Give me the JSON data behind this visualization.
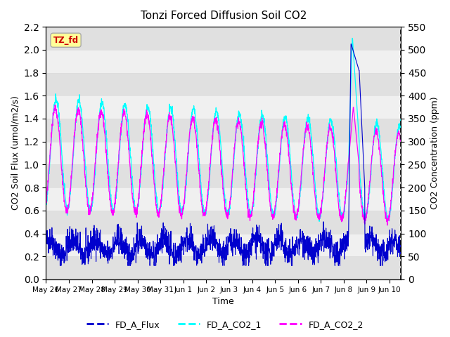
{
  "title": "Tonzi Forced Diffusion Soil CO2",
  "xlabel": "Time",
  "ylabel_left": "CO2 Soil Flux (umol/m2/s)",
  "ylabel_right": "CO2 Concentration (ppm)",
  "ylim_left": [
    0.0,
    2.2
  ],
  "ylim_right": [
    0,
    550
  ],
  "yticks_left": [
    0.0,
    0.2,
    0.4,
    0.6,
    0.8,
    1.0,
    1.2,
    1.4,
    1.6,
    1.8,
    2.0,
    2.2
  ],
  "yticks_right": [
    0,
    50,
    100,
    150,
    200,
    250,
    300,
    350,
    400,
    450,
    500,
    550
  ],
  "color_flux": "#0000CD",
  "color_co2_1": "#00FFFF",
  "color_co2_2": "#FF00FF",
  "tag_text": "TZ_fd",
  "tag_bg": "#FFFF99",
  "tag_fg": "#CC0000",
  "legend_labels": [
    "FD_A_Flux",
    "FD_A_CO2_1",
    "FD_A_CO2_2"
  ],
  "grid_color": "#DDDDDD",
  "bg_color": "#F0F0F0",
  "n_days": 15.5,
  "n_points": 1860,
  "xtick_positions": [
    0,
    1,
    2,
    3,
    4,
    5,
    6,
    7,
    8,
    9,
    10,
    11,
    12,
    13,
    14,
    15
  ],
  "xtick_labels": [
    "May 26",
    "May 27",
    "May 28",
    "May 29",
    "May 30",
    "May 31",
    "Jun 1",
    "Jun 2",
    "Jun 3",
    "Jun 4",
    "Jun 5",
    "Jun 6",
    "Jun 7",
    "Jun 8",
    "Jun 9",
    "Jun 10"
  ]
}
